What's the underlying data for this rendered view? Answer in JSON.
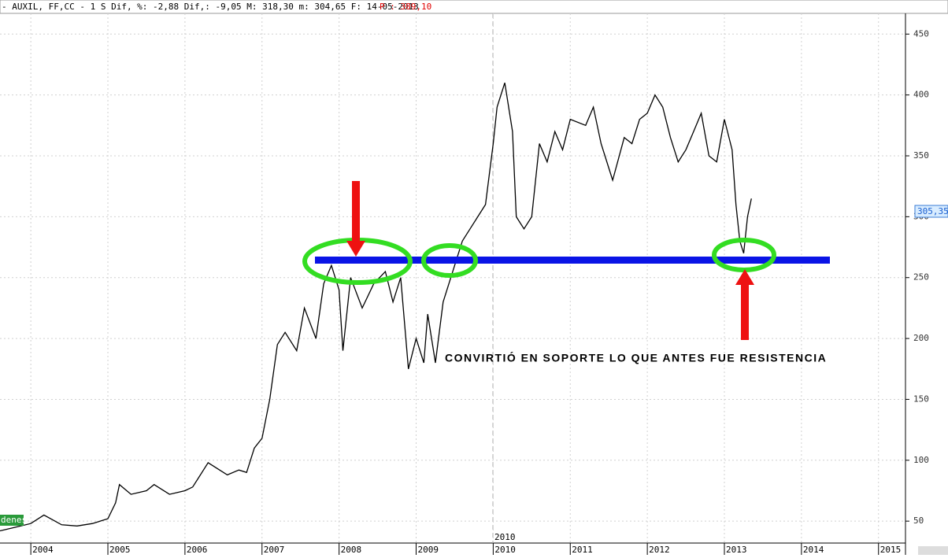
{
  "header": {
    "text": "- AUXIL, FF,CC -  1 S Dif, %: -2,88 Dif,: -9,05 M: 318,30 m: 304,65 F: 14-05-2013",
    "price": "P : 389,10"
  },
  "chart_data": {
    "type": "line",
    "annotation": "CONVIRTIÓ EN SOPORTE LO QUE ANTES FUE RESISTENCIA",
    "price_tag": "305,35",
    "period_label": "2010",
    "tag": "denes",
    "x": [
      2003.6,
      2003.8,
      2004.0,
      2004.17,
      2004.4,
      2004.6,
      2004.8,
      2005.0,
      2005.1,
      2005.15,
      2005.3,
      2005.5,
      2005.6,
      2005.8,
      2006.0,
      2006.1,
      2006.2,
      2006.3,
      2006.45,
      2006.55,
      2006.7,
      2006.8,
      2006.9,
      2007.0,
      2007.1,
      2007.2,
      2007.3,
      2007.45,
      2007.55,
      2007.7,
      2007.8,
      2007.9,
      2008.0,
      2008.05,
      2008.15,
      2008.3,
      2008.45,
      2008.6,
      2008.7,
      2008.8,
      2008.9,
      2009.0,
      2009.1,
      2009.15,
      2009.25,
      2009.35,
      2009.5,
      2009.6,
      2009.7,
      2009.8,
      2009.9,
      2010.0,
      2010.05,
      2010.15,
      2010.25,
      2010.3,
      2010.4,
      2010.5,
      2010.6,
      2010.7,
      2010.8,
      2010.9,
      2011.0,
      2011.2,
      2011.3,
      2011.4,
      2011.5,
      2011.55,
      2011.7,
      2011.8,
      2011.9,
      2012.0,
      2012.1,
      2012.2,
      2012.3,
      2012.4,
      2012.5,
      2012.6,
      2012.7,
      2012.8,
      2012.9,
      2013.0,
      2013.1,
      2013.15,
      2013.2,
      2013.25,
      2013.3,
      2013.35
    ],
    "values": [
      42,
      45,
      48,
      55,
      47,
      46,
      48,
      52,
      65,
      80,
      72,
      75,
      80,
      72,
      75,
      78,
      88,
      98,
      92,
      88,
      92,
      90,
      110,
      118,
      150,
      195,
      205,
      190,
      225,
      200,
      245,
      260,
      240,
      190,
      250,
      225,
      245,
      255,
      230,
      250,
      175,
      200,
      180,
      220,
      180,
      230,
      260,
      280,
      290,
      300,
      310,
      360,
      390,
      410,
      370,
      300,
      290,
      300,
      360,
      345,
      370,
      355,
      380,
      375,
      390,
      360,
      340,
      330,
      365,
      360,
      380,
      385,
      400,
      390,
      365,
      345,
      355,
      370,
      385,
      350,
      345,
      380,
      355,
      310,
      280,
      270,
      300,
      315
    ],
    "color": "#000000",
    "xlim": [
      2003.6,
      2015.35
    ],
    "ylim": [
      32,
      467
    ],
    "xticks": [
      2004,
      2005,
      2006,
      2007,
      2008,
      2009,
      2010,
      2011,
      2012,
      2013,
      2014,
      2015
    ],
    "yticks": [
      50,
      100,
      150,
      200,
      250,
      300,
      350,
      400,
      450
    ],
    "grid": true
  }
}
